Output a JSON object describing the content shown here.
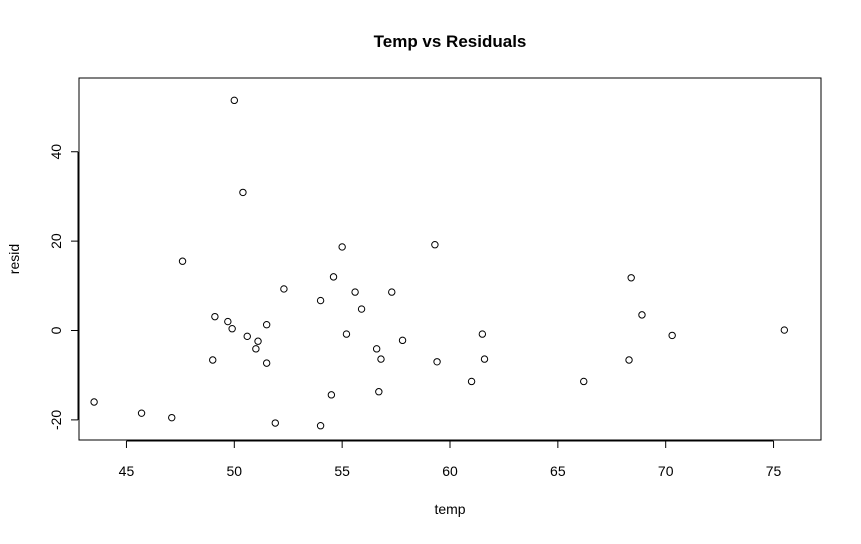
{
  "chart_data": {
    "type": "scatter",
    "title": "Temp vs Residuals",
    "xlabel": "temp",
    "ylabel": "resid",
    "xlim": [
      42.8,
      77.2
    ],
    "ylim": [
      -24.5,
      56.5
    ],
    "xticks": [
      45,
      50,
      55,
      60,
      65,
      70,
      75
    ],
    "yticks": [
      -20,
      0,
      20,
      40
    ],
    "xtick_labels": [
      "45",
      "50",
      "55",
      "60",
      "65",
      "70",
      "75"
    ],
    "ytick_labels": [
      "-20",
      "0",
      "20",
      "40"
    ],
    "grid": false,
    "legend": "none",
    "marker": "open-circle",
    "points": [
      {
        "x": 43.5,
        "y": -16.0
      },
      {
        "x": 45.7,
        "y": -18.5
      },
      {
        "x": 47.1,
        "y": -19.5
      },
      {
        "x": 47.6,
        "y": 15.5
      },
      {
        "x": 49.0,
        "y": -6.6
      },
      {
        "x": 49.1,
        "y": 3.1
      },
      {
        "x": 49.7,
        "y": 2.0
      },
      {
        "x": 49.9,
        "y": 0.4
      },
      {
        "x": 50.0,
        "y": 51.5
      },
      {
        "x": 50.4,
        "y": 30.9
      },
      {
        "x": 50.6,
        "y": -1.3
      },
      {
        "x": 51.0,
        "y": -4.1
      },
      {
        "x": 51.1,
        "y": -2.4
      },
      {
        "x": 51.5,
        "y": 1.3
      },
      {
        "x": 51.5,
        "y": -7.3
      },
      {
        "x": 51.9,
        "y": -20.7
      },
      {
        "x": 52.3,
        "y": 9.3
      },
      {
        "x": 54.0,
        "y": 6.7
      },
      {
        "x": 54.0,
        "y": -21.3
      },
      {
        "x": 54.5,
        "y": -14.4
      },
      {
        "x": 54.6,
        "y": 12.0
      },
      {
        "x": 55.0,
        "y": 18.7
      },
      {
        "x": 55.2,
        "y": -0.8
      },
      {
        "x": 55.6,
        "y": 8.6
      },
      {
        "x": 55.9,
        "y": 4.8
      },
      {
        "x": 56.6,
        "y": -4.1
      },
      {
        "x": 56.7,
        "y": -13.7
      },
      {
        "x": 56.8,
        "y": -6.4
      },
      {
        "x": 57.3,
        "y": 8.6
      },
      {
        "x": 57.8,
        "y": -2.2
      },
      {
        "x": 59.3,
        "y": 19.2
      },
      {
        "x": 59.4,
        "y": -7.0
      },
      {
        "x": 61.0,
        "y": -11.4
      },
      {
        "x": 61.5,
        "y": -0.8
      },
      {
        "x": 61.6,
        "y": -6.4
      },
      {
        "x": 66.2,
        "y": -11.4
      },
      {
        "x": 68.3,
        "y": -6.6
      },
      {
        "x": 68.4,
        "y": 11.8
      },
      {
        "x": 68.9,
        "y": 3.5
      },
      {
        "x": 70.3,
        "y": -1.1
      },
      {
        "x": 75.5,
        "y": 0.1
      }
    ]
  }
}
